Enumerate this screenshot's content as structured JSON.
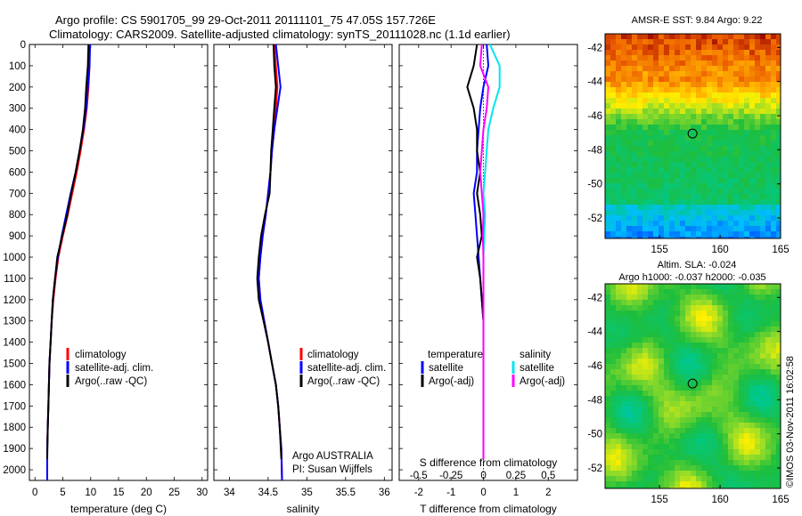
{
  "title": {
    "line1": "Argo profile: CS 5901705_99 29-Oct-2011 20111101_75 47.05S 157.726E",
    "line2": "Climatology: CARS2009. Satellite-adjusted climatology: synTS_20111028.nc (1.1d earlier)"
  },
  "depth_ticks": [
    0,
    100,
    200,
    300,
    400,
    500,
    600,
    700,
    800,
    900,
    1000,
    1100,
    1200,
    1300,
    1400,
    1500,
    1600,
    1700,
    1800,
    1900,
    2000
  ],
  "colors": {
    "climatology": "#ff0000",
    "satellite": "#0000ff",
    "argo": "#000000",
    "sal_satellite": "#00e5ee",
    "sal_argo": "#ff00ff"
  },
  "legend": {
    "climatology": "climatology",
    "satellite_adj": "satellite-adj. clim.",
    "argo_raw": "Argo(..raw -QC)",
    "temperature": "temperature",
    "salinity": "salinity",
    "satellite": "satellite",
    "argo_adj": "Argo(-adj)"
  },
  "annotations": {
    "argo_country": "Argo AUSTRALIA",
    "pi": "PI: Susan Wijffels",
    "s_diff_label": "S difference from climatology",
    "credit": "©IMOS 03-Nov-2011 16:02:58"
  },
  "chart_data": [
    {
      "type": "line",
      "xlabel": "temperature (deg C)",
      "xlim": [
        -1,
        31
      ],
      "ylim": [
        2050,
        0
      ],
      "xticks": [
        0,
        5,
        10,
        15,
        20,
        25,
        30
      ],
      "series": [
        {
          "name": "climatology",
          "x": [
            9.8,
            9.8,
            9.6,
            9.3,
            8.8,
            8.2,
            7.5,
            6.7,
            5.9,
            5.0,
            4.2,
            3.7,
            3.3,
            3.0,
            2.8,
            2.6,
            2.5,
            2.4,
            2.3,
            2.2,
            2.2
          ],
          "y": [
            0,
            100,
            200,
            300,
            400,
            500,
            600,
            700,
            800,
            900,
            1000,
            1100,
            1200,
            1300,
            1400,
            1500,
            1600,
            1700,
            1800,
            1900,
            2050
          ]
        },
        {
          "name": "satellite-adj. clim.",
          "x": [
            9.9,
            9.8,
            9.5,
            9.2,
            8.7,
            8.0,
            7.3,
            6.4,
            5.6,
            4.8,
            4.1,
            3.6,
            3.2,
            3.0,
            2.8,
            2.6,
            2.5,
            2.4,
            2.3,
            2.2,
            2.2
          ],
          "y": [
            0,
            100,
            200,
            300,
            400,
            500,
            600,
            700,
            800,
            900,
            1000,
            1100,
            1200,
            1300,
            1400,
            1500,
            1600,
            1700,
            1800,
            1900,
            2050
          ]
        },
        {
          "name": "Argo(..raw -QC)",
          "x": [
            9.6,
            9.5,
            9.2,
            9.0,
            8.6,
            8.0,
            7.3,
            6.5,
            5.8,
            4.9,
            4.0,
            3.6,
            3.2,
            3.0,
            2.8,
            2.6,
            2.5,
            2.4,
            2.3,
            2.2
          ],
          "y": [
            0,
            100,
            200,
            300,
            400,
            500,
            600,
            700,
            800,
            900,
            1000,
            1100,
            1200,
            1300,
            1400,
            1500,
            1600,
            1700,
            1800,
            1950
          ]
        }
      ]
    },
    {
      "type": "line",
      "xlabel": "salinity",
      "xlim": [
        33.8,
        36.1
      ],
      "ylim": [
        2050,
        0
      ],
      "xticks": [
        34,
        34.5,
        35,
        35.5,
        36
      ],
      "series": [
        {
          "name": "climatology",
          "x": [
            34.58,
            34.6,
            34.62,
            34.6,
            34.58,
            34.55,
            34.53,
            34.5,
            34.47,
            34.43,
            34.4,
            34.38,
            34.4,
            34.45,
            34.5,
            34.55,
            34.6,
            34.63,
            34.65,
            34.67,
            34.68
          ],
          "y": [
            0,
            100,
            200,
            300,
            400,
            500,
            600,
            700,
            800,
            900,
            1000,
            1100,
            1200,
            1300,
            1400,
            1500,
            1600,
            1700,
            1800,
            1900,
            2050
          ]
        },
        {
          "name": "satellite-adj. clim.",
          "x": [
            34.6,
            34.63,
            34.66,
            34.62,
            34.58,
            34.55,
            34.53,
            34.5,
            34.47,
            34.43,
            34.4,
            34.38,
            34.4,
            34.45,
            34.5,
            34.55,
            34.6,
            34.63,
            34.65,
            34.67,
            34.68
          ],
          "y": [
            0,
            100,
            200,
            300,
            400,
            500,
            600,
            700,
            800,
            900,
            1000,
            1100,
            1200,
            1300,
            1400,
            1500,
            1600,
            1700,
            1800,
            1900,
            2050
          ]
        },
        {
          "name": "Argo(..raw -QC)",
          "x": [
            34.57,
            34.58,
            34.6,
            34.58,
            34.56,
            34.54,
            34.53,
            34.52,
            34.46,
            34.41,
            34.38,
            34.36,
            34.38,
            34.44,
            34.5,
            34.55,
            34.6,
            34.63,
            34.65,
            34.67
          ],
          "y": [
            0,
            100,
            200,
            300,
            400,
            500,
            600,
            700,
            800,
            900,
            1000,
            1100,
            1200,
            1300,
            1400,
            1500,
            1600,
            1700,
            1800,
            1950
          ]
        }
      ]
    },
    {
      "type": "line",
      "xlabel": "T difference from climatology",
      "xlim": [
        -2.6,
        2.9
      ],
      "ylim": [
        2050,
        0
      ],
      "xticks": [
        -2,
        -1,
        0,
        1,
        2
      ],
      "x2ticks": [
        -0.5,
        -0.25,
        0,
        0.25,
        0.5
      ],
      "zero_line": 0,
      "series": [
        {
          "name": "satellite",
          "x": [
            0.1,
            0.15,
            0.0,
            -0.1,
            -0.15,
            -0.2,
            -0.2,
            -0.3,
            -0.25,
            -0.2,
            -0.15,
            -0.1,
            -0.05,
            0.0,
            0.0,
            0.0,
            0.0,
            0.0,
            0.0,
            0.0
          ],
          "y": [
            0,
            100,
            200,
            300,
            400,
            500,
            600,
            700,
            800,
            900,
            1000,
            1100,
            1200,
            1300,
            1400,
            1500,
            1600,
            1700,
            1800,
            1950
          ]
        },
        {
          "name": "Argo(-adj)",
          "x": [
            -0.2,
            -0.3,
            -0.5,
            -0.3,
            -0.2,
            -0.2,
            -0.1,
            -0.2,
            -0.1,
            -0.05,
            -0.2,
            -0.1,
            -0.05,
            0.0,
            0.0,
            0.0,
            0.0,
            0.0,
            0.0,
            0.0
          ],
          "y": [
            0,
            100,
            200,
            300,
            400,
            500,
            600,
            700,
            800,
            900,
            1000,
            1100,
            1200,
            1300,
            1400,
            1500,
            1600,
            1700,
            1800,
            1950
          ]
        },
        {
          "name": "salinity satellite",
          "x": [
            0.2,
            0.5,
            0.5,
            0.3,
            0.15,
            0.1,
            0.05,
            0.0,
            0.05,
            0.02,
            0.0,
            0.0,
            0.0,
            0.0,
            0.0,
            0.0,
            0.0,
            0.0,
            0.0,
            0.0
          ],
          "y": [
            0,
            100,
            200,
            300,
            400,
            500,
            600,
            700,
            800,
            900,
            1000,
            1100,
            1200,
            1300,
            1400,
            1500,
            1600,
            1700,
            1800,
            1950
          ]
        },
        {
          "name": "salinity Argo(-adj)",
          "x": [
            -0.05,
            -0.1,
            0.15,
            0.1,
            0.0,
            -0.05,
            -0.1,
            -0.05,
            0.0,
            -0.02,
            0.0,
            0.0,
            0.0,
            0.0,
            0.0,
            0.0,
            0.0,
            0.0,
            0.0,
            0.0
          ],
          "y": [
            0,
            100,
            200,
            300,
            400,
            500,
            600,
            700,
            800,
            900,
            1000,
            1100,
            1200,
            1300,
            1400,
            1500,
            1600,
            1700,
            1800,
            1950
          ]
        }
      ]
    },
    {
      "type": "heatmap",
      "title": "AMSR-E SST: 9.84 Argo: 9.22",
      "xticks": [
        155,
        160,
        165
      ],
      "yticks": [
        -42,
        -44,
        -46,
        -48,
        -50,
        -52
      ],
      "xlim": [
        150.5,
        165
      ],
      "ylim": [
        -53.2,
        -41.2
      ],
      "marker": {
        "lon": 157.726,
        "lat": -47.05
      }
    },
    {
      "type": "heatmap",
      "title": "Altim. SLA: -0.024",
      "subtitle": "Argo h1000: -0.037 h2000: -0.035",
      "xticks": [
        155,
        160,
        165
      ],
      "yticks": [
        -42,
        -44,
        -46,
        -48,
        -50,
        -52
      ],
      "xlim": [
        150.5,
        165
      ],
      "ylim": [
        -53.2,
        -41.2
      ],
      "marker": {
        "lon": 157.726,
        "lat": -47.05
      }
    }
  ]
}
